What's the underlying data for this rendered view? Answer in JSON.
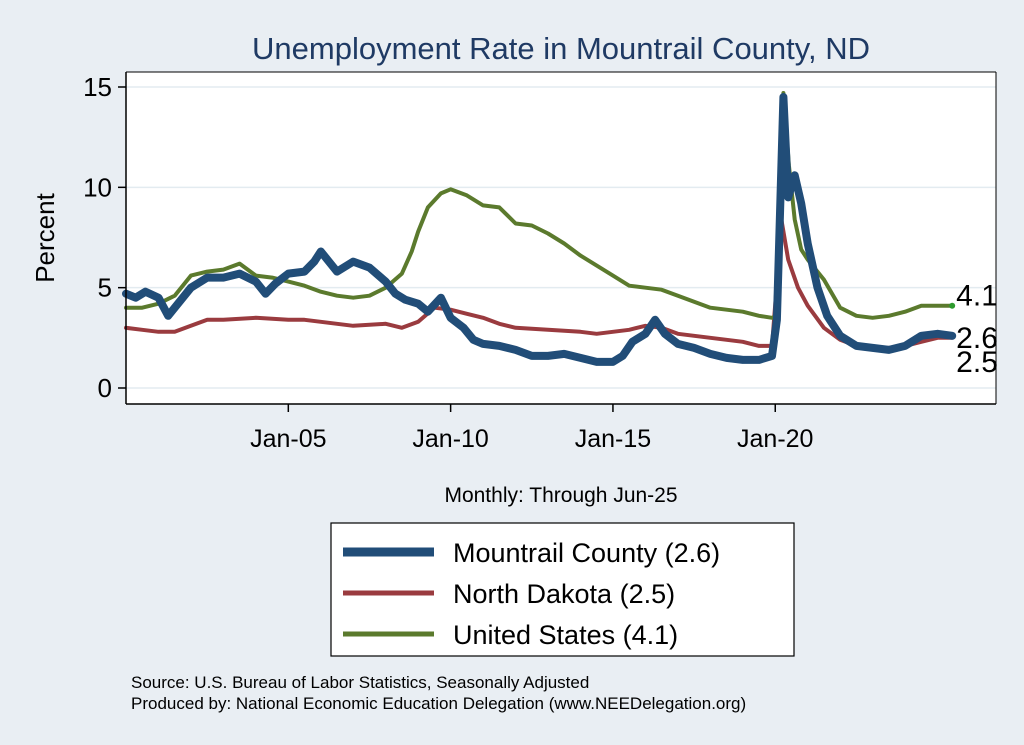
{
  "chart_data": {
    "type": "line",
    "title": "Unemployment Rate in Mountrail  County, ND",
    "ylabel": "Percent",
    "xlabel": "Monthly: Through Jun-25",
    "ylim": [
      0,
      15
    ],
    "xlim": [
      2000.0,
      2026.8
    ],
    "yticks": [
      "0",
      "5",
      "10",
      "15"
    ],
    "xticks": [
      {
        "label": "Jan-05",
        "year": 2005.0
      },
      {
        "label": "Jan-10",
        "year": 2010.0
      },
      {
        "label": "Jan-15",
        "year": 2015.0
      },
      {
        "label": "Jan-20",
        "year": 2020.0
      }
    ],
    "series": [
      {
        "name": "North Dakota",
        "legend": "North Dakota (2.5)",
        "end_label": "2.5",
        "color": "#9a3b3f",
        "points": [
          [
            2000.0,
            3.0
          ],
          [
            2000.5,
            2.9
          ],
          [
            2001.0,
            2.8
          ],
          [
            2001.5,
            2.8
          ],
          [
            2002.0,
            3.1
          ],
          [
            2002.5,
            3.4
          ],
          [
            2003.0,
            3.4
          ],
          [
            2004.0,
            3.5
          ],
          [
            2005.0,
            3.4
          ],
          [
            2005.5,
            3.4
          ],
          [
            2006.0,
            3.3
          ],
          [
            2007.0,
            3.1
          ],
          [
            2008.0,
            3.2
          ],
          [
            2008.5,
            3.0
          ],
          [
            2009.0,
            3.3
          ],
          [
            2009.5,
            4.0
          ],
          [
            2010.0,
            3.9
          ],
          [
            2010.5,
            3.7
          ],
          [
            2011.0,
            3.5
          ],
          [
            2011.5,
            3.2
          ],
          [
            2012.0,
            3.0
          ],
          [
            2013.0,
            2.9
          ],
          [
            2014.0,
            2.8
          ],
          [
            2014.5,
            2.7
          ],
          [
            2015.0,
            2.8
          ],
          [
            2015.5,
            2.9
          ],
          [
            2016.0,
            3.1
          ],
          [
            2016.5,
            3.0
          ],
          [
            2017.0,
            2.7
          ],
          [
            2017.5,
            2.6
          ],
          [
            2018.0,
            2.5
          ],
          [
            2018.5,
            2.4
          ],
          [
            2019.0,
            2.3
          ],
          [
            2019.5,
            2.1
          ],
          [
            2019.9,
            2.1
          ],
          [
            2020.2,
            8.3
          ],
          [
            2020.4,
            6.4
          ],
          [
            2020.7,
            5.0
          ],
          [
            2021.0,
            4.1
          ],
          [
            2021.5,
            3.0
          ],
          [
            2022.0,
            2.4
          ],
          [
            2022.5,
            2.1
          ],
          [
            2023.0,
            2.0
          ],
          [
            2023.5,
            2.0
          ],
          [
            2024.0,
            2.1
          ],
          [
            2024.5,
            2.3
          ],
          [
            2025.0,
            2.5
          ],
          [
            2025.45,
            2.5
          ]
        ]
      },
      {
        "name": "United States",
        "legend": "United States (4.1)",
        "end_label": "4.1",
        "color": "#5b7a2d",
        "points": [
          [
            2000.0,
            4.0
          ],
          [
            2000.5,
            4.0
          ],
          [
            2001.0,
            4.2
          ],
          [
            2001.5,
            4.6
          ],
          [
            2002.0,
            5.6
          ],
          [
            2002.5,
            5.8
          ],
          [
            2003.0,
            5.9
          ],
          [
            2003.5,
            6.2
          ],
          [
            2004.0,
            5.6
          ],
          [
            2004.5,
            5.5
          ],
          [
            2005.0,
            5.3
          ],
          [
            2005.5,
            5.1
          ],
          [
            2006.0,
            4.8
          ],
          [
            2006.5,
            4.6
          ],
          [
            2007.0,
            4.5
          ],
          [
            2007.5,
            4.6
          ],
          [
            2008.0,
            5.0
          ],
          [
            2008.5,
            5.7
          ],
          [
            2008.8,
            6.8
          ],
          [
            2009.0,
            7.8
          ],
          [
            2009.3,
            9.0
          ],
          [
            2009.7,
            9.7
          ],
          [
            2010.0,
            9.9
          ],
          [
            2010.5,
            9.6
          ],
          [
            2011.0,
            9.1
          ],
          [
            2011.5,
            9.0
          ],
          [
            2012.0,
            8.2
          ],
          [
            2012.5,
            8.1
          ],
          [
            2013.0,
            7.7
          ],
          [
            2013.5,
            7.2
          ],
          [
            2014.0,
            6.6
          ],
          [
            2014.5,
            6.1
          ],
          [
            2015.0,
            5.6
          ],
          [
            2015.5,
            5.1
          ],
          [
            2016.0,
            5.0
          ],
          [
            2016.5,
            4.9
          ],
          [
            2017.0,
            4.6
          ],
          [
            2017.5,
            4.3
          ],
          [
            2018.0,
            4.0
          ],
          [
            2018.5,
            3.9
          ],
          [
            2019.0,
            3.8
          ],
          [
            2019.5,
            3.6
          ],
          [
            2019.9,
            3.5
          ],
          [
            2020.05,
            3.6
          ],
          [
            2020.25,
            14.7
          ],
          [
            2020.42,
            11.1
          ],
          [
            2020.6,
            8.4
          ],
          [
            2020.8,
            6.9
          ],
          [
            2021.0,
            6.4
          ],
          [
            2021.5,
            5.4
          ],
          [
            2022.0,
            4.0
          ],
          [
            2022.5,
            3.6
          ],
          [
            2023.0,
            3.5
          ],
          [
            2023.5,
            3.6
          ],
          [
            2024.0,
            3.8
          ],
          [
            2024.5,
            4.1
          ],
          [
            2025.0,
            4.1
          ],
          [
            2025.45,
            4.1
          ]
        ]
      },
      {
        "name": "Mountrail  County",
        "legend": "Mountrail  County (2.6)",
        "end_label": "2.6",
        "color": "#214d78",
        "points": [
          [
            2000.0,
            4.7
          ],
          [
            2000.3,
            4.5
          ],
          [
            2000.6,
            4.8
          ],
          [
            2001.0,
            4.5
          ],
          [
            2001.3,
            3.6
          ],
          [
            2001.6,
            4.2
          ],
          [
            2002.0,
            5.0
          ],
          [
            2002.5,
            5.5
          ],
          [
            2003.0,
            5.5
          ],
          [
            2003.5,
            5.7
          ],
          [
            2004.0,
            5.3
          ],
          [
            2004.3,
            4.7
          ],
          [
            2004.6,
            5.2
          ],
          [
            2005.0,
            5.7
          ],
          [
            2005.5,
            5.8
          ],
          [
            2005.8,
            6.3
          ],
          [
            2006.0,
            6.8
          ],
          [
            2006.5,
            5.8
          ],
          [
            2007.0,
            6.3
          ],
          [
            2007.5,
            6.0
          ],
          [
            2008.0,
            5.3
          ],
          [
            2008.3,
            4.7
          ],
          [
            2008.6,
            4.4
          ],
          [
            2009.0,
            4.2
          ],
          [
            2009.3,
            3.8
          ],
          [
            2009.7,
            4.5
          ],
          [
            2010.0,
            3.5
          ],
          [
            2010.4,
            3.0
          ],
          [
            2010.7,
            2.4
          ],
          [
            2011.0,
            2.2
          ],
          [
            2011.5,
            2.1
          ],
          [
            2012.0,
            1.9
          ],
          [
            2012.5,
            1.6
          ],
          [
            2013.0,
            1.6
          ],
          [
            2013.5,
            1.7
          ],
          [
            2014.0,
            1.5
          ],
          [
            2014.5,
            1.3
          ],
          [
            2015.0,
            1.3
          ],
          [
            2015.3,
            1.6
          ],
          [
            2015.6,
            2.3
          ],
          [
            2016.0,
            2.7
          ],
          [
            2016.3,
            3.4
          ],
          [
            2016.6,
            2.7
          ],
          [
            2017.0,
            2.2
          ],
          [
            2017.5,
            2.0
          ],
          [
            2018.0,
            1.7
          ],
          [
            2018.5,
            1.5
          ],
          [
            2019.0,
            1.4
          ],
          [
            2019.5,
            1.4
          ],
          [
            2019.9,
            1.6
          ],
          [
            2020.05,
            3.4
          ],
          [
            2020.25,
            14.5
          ],
          [
            2020.4,
            9.5
          ],
          [
            2020.6,
            10.6
          ],
          [
            2020.8,
            9.2
          ],
          [
            2021.0,
            7.2
          ],
          [
            2021.3,
            5.0
          ],
          [
            2021.6,
            3.6
          ],
          [
            2022.0,
            2.6
          ],
          [
            2022.5,
            2.1
          ],
          [
            2023.0,
            2.0
          ],
          [
            2023.5,
            1.9
          ],
          [
            2024.0,
            2.1
          ],
          [
            2024.5,
            2.6
          ],
          [
            2025.0,
            2.7
          ],
          [
            2025.45,
            2.6
          ]
        ]
      }
    ],
    "legend_order": [
      "Mountrail  County",
      "North Dakota",
      "United States"
    ],
    "grid": true,
    "legend_position": "bottom"
  },
  "footer": {
    "source": "Source: U.S. Bureau of Labor Statistics, Seasonally Adjusted",
    "produced_by": "Produced by: National Economic Education Delegation (www.NEEDelegation.org)"
  }
}
